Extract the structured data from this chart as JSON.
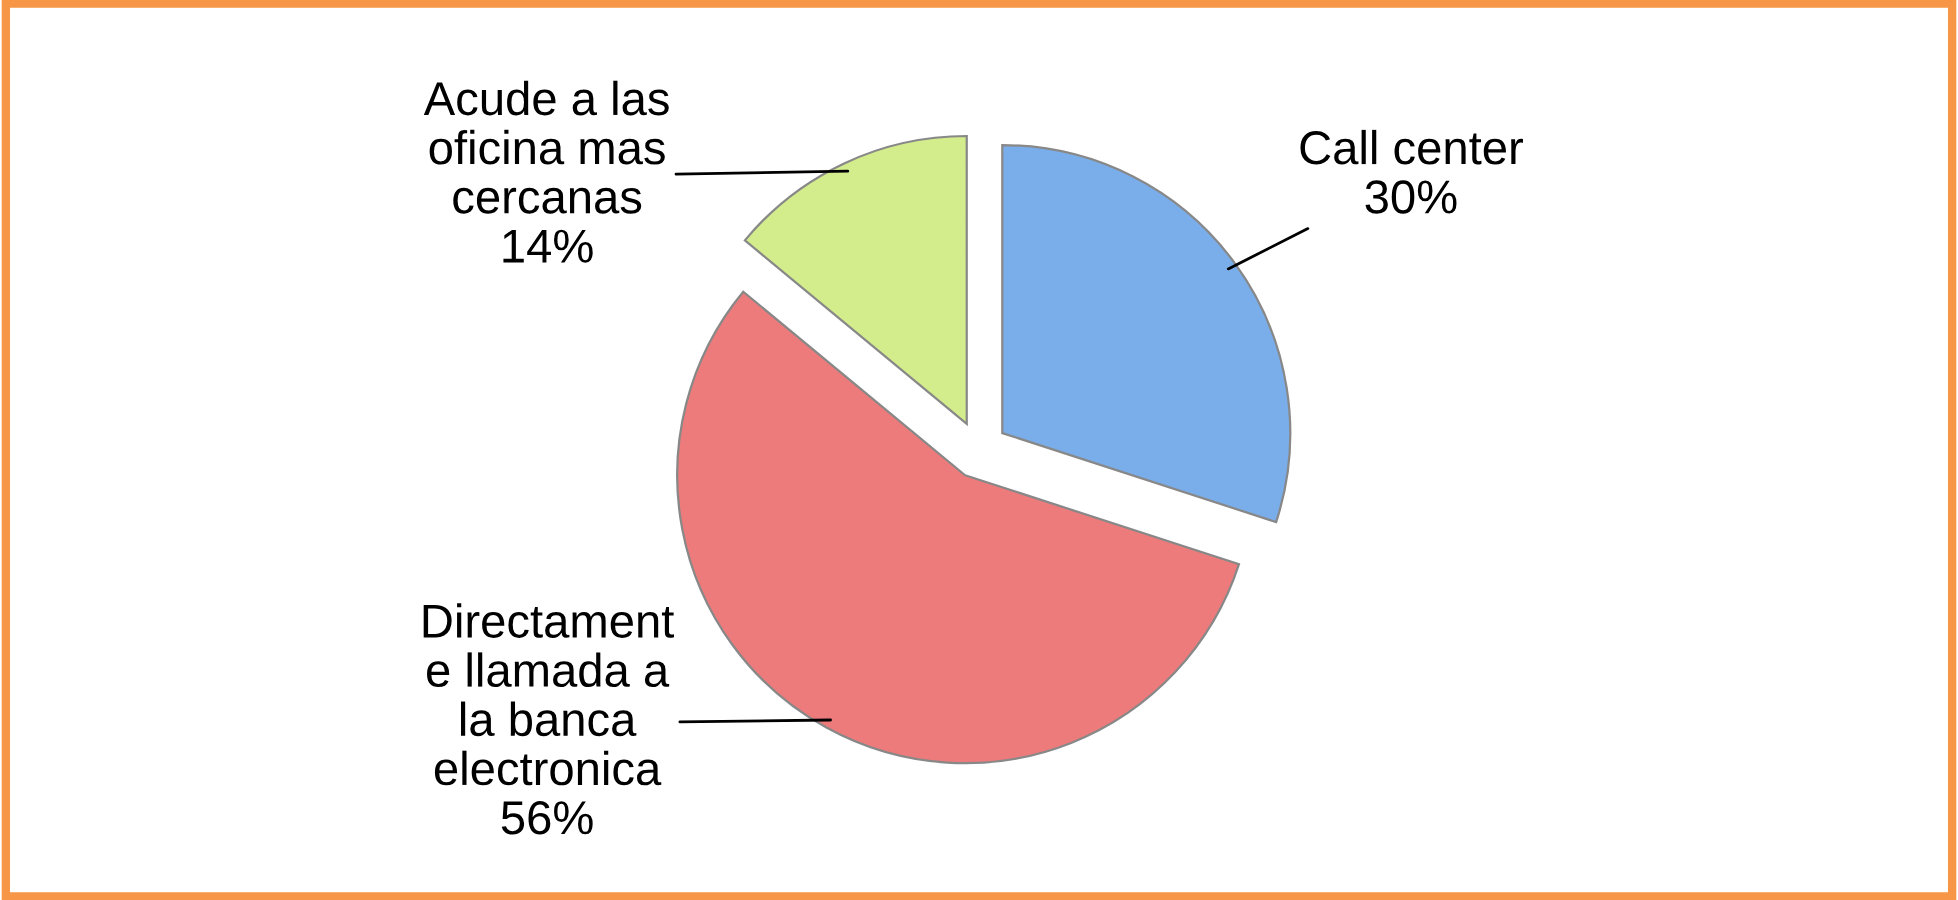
{
  "chart_data": {
    "type": "pie",
    "categories": [
      "Call center",
      "Directament\ne llamada a\nla banca\nelectronica",
      "Acude a las\noficina mas\ncercanas"
    ],
    "values": [
      30,
      56,
      14
    ],
    "colors": [
      "#7aaeea",
      "#ee7b7b",
      "#d3ec8c"
    ],
    "value_labels": [
      "30%",
      "56%",
      "14%"
    ]
  }
}
